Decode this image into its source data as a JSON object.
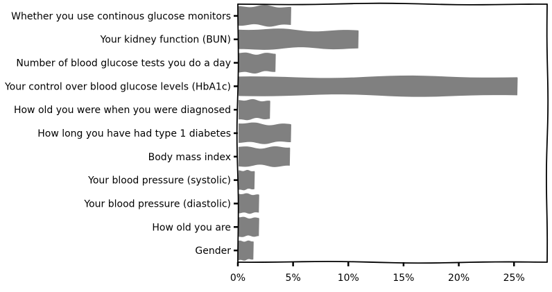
{
  "chart_data": {
    "type": "bar",
    "orientation": "horizontal",
    "style": "hand-drawn",
    "title": "",
    "xlabel": "",
    "ylabel": "",
    "categories": [
      "Whether you use continous glucose monitors",
      "Your kidney function (BUN)",
      "Number of blood glucose tests you do a day",
      "Your control over blood glucose levels (HbA1c)",
      "How old you were when you were diagnosed",
      "How long you have had type 1 diabetes",
      "Body mass index",
      "Your blood pressure (systolic)",
      "Your blood pressure (diastolic)",
      "How old you are",
      "Gender"
    ],
    "values": [
      4.8,
      10.9,
      3.4,
      25.3,
      2.9,
      4.8,
      4.7,
      1.5,
      1.9,
      1.9,
      1.4
    ],
    "value_unit": "%",
    "xlim": [
      0,
      28
    ],
    "xticks": [
      0,
      5,
      10,
      15,
      20,
      25
    ],
    "xtick_labels": [
      "0%",
      "5%",
      "10%",
      "15%",
      "20%",
      "25%"
    ],
    "bar_color": "#808080",
    "grid": false,
    "legend": "none"
  }
}
